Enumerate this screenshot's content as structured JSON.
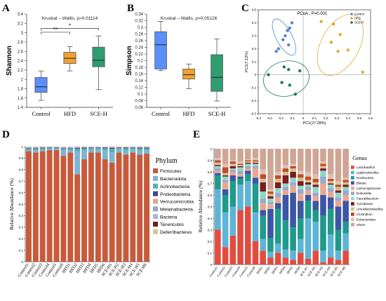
{
  "colors": {
    "control": "#5b8ff9",
    "hfd": "#f0a030",
    "sceh": "#2e9e6e",
    "pcoa_control": "#4a8ad6",
    "pcoa_hfd": "#e0a92f",
    "pcoa_sceh": "#1f7a55",
    "phylum": [
      "#c85a3c",
      "#7db6d4",
      "#51b3b1",
      "#3b4e8c",
      "#d6a98c",
      "#98a6c9",
      "#a9b8d8",
      "#7a1c1c",
      "#d6c49a"
    ],
    "genus": [
      "#e24c3f",
      "#5eb4d6",
      "#1f9a8b",
      "#3c55a5",
      "#e8a88f",
      "#9aa8cf",
      "#8ed8c6",
      "#7c1d1d",
      "#d4c08f",
      "#c14b2a",
      "#e0bfb3",
      "#cfa594"
    ]
  },
  "chart_data": [
    {
      "panel": "A",
      "type": "box",
      "title": "Kruskal – Wallis, p=0.01114",
      "ylabel": "Shannon",
      "categories": [
        "Control",
        "HFD",
        "SCE-H"
      ],
      "ylim": [
        1.4,
        3.4
      ],
      "ticks": [
        "1.4",
        "1.6",
        "1.8",
        "2",
        "2.2",
        "2.4",
        "2.6",
        "2.8",
        "3",
        "3.2",
        "3.4"
      ],
      "tick_values": [
        1.4,
        1.6,
        1.8,
        2,
        2.2,
        2.4,
        2.6,
        2.8,
        3,
        3.2,
        3.4
      ],
      "boxes": [
        {
          "min": 1.55,
          "q1": 1.72,
          "median": 1.84,
          "q3": 2.04,
          "max": 2.18
        },
        {
          "min": 2.18,
          "q1": 2.34,
          "median": 2.45,
          "q3": 2.58,
          "max": 2.7
        },
        {
          "min": 1.78,
          "q1": 2.27,
          "median": 2.41,
          "q3": 2.69,
          "max": 2.93
        }
      ],
      "significance": [
        {
          "from": 0,
          "to": 1,
          "label": "**",
          "y": 3.01
        },
        {
          "from": 0,
          "to": 2,
          "label": "*",
          "y": 3.09
        }
      ]
    },
    {
      "panel": "B",
      "type": "box",
      "title": "Kruskal – Wallis, p=0.05126",
      "ylabel": "Simpson",
      "categories": [
        "Control",
        "HFD",
        "SCE-H"
      ],
      "ylim": [
        0.06,
        0.34
      ],
      "ticks": [
        "0.06",
        "0.08",
        "0.1",
        "0.12",
        "0.14",
        "0.16",
        "0.18",
        "0.2",
        "0.22",
        "0.24",
        "0.26",
        "0.28",
        "0.3",
        "0.32",
        "0.34"
      ],
      "tick_values": [
        0.06,
        0.08,
        0.1,
        0.12,
        0.14,
        0.16,
        0.18,
        0.2,
        0.22,
        0.24,
        0.26,
        0.28,
        0.3,
        0.32,
        0.34
      ],
      "boxes": [
        {
          "min": 0.17,
          "q1": 0.175,
          "median": 0.248,
          "q3": 0.287,
          "max": 0.318
        },
        {
          "min": 0.116,
          "q1": 0.145,
          "median": 0.158,
          "q3": 0.175,
          "max": 0.19
        },
        {
          "min": 0.079,
          "q1": 0.108,
          "median": 0.15,
          "q3": 0.218,
          "max": 0.265
        }
      ]
    },
    {
      "panel": "C",
      "type": "scatter",
      "title": "PCoA , P=0.001",
      "xlabel": "PC1(27.28%)",
      "ylabel": "PC2(7.12%)",
      "xlim": [
        -0.4,
        0.6
      ],
      "ylim": [
        -0.3,
        0.5
      ],
      "xticks": [
        "-0.4",
        "-0.3",
        "-0.2",
        "-0.1",
        "0",
        "0.1",
        "0.2",
        "0.3",
        "0.4",
        "0.5",
        "0.6"
      ],
      "xtick_values": [
        -0.4,
        -0.3,
        -0.2,
        -0.1,
        0,
        0.1,
        0.2,
        0.3,
        0.4,
        0.5,
        0.6
      ],
      "yticks": [
        "-0.3",
        "-0.2",
        "-0.1",
        "0",
        "0.1",
        "0.2",
        "0.3",
        "0.4",
        "0.5"
      ],
      "ytick_values": [
        -0.3,
        -0.2,
        -0.1,
        0,
        0.1,
        0.2,
        0.3,
        0.4,
        0.5
      ],
      "legend": [
        "Control",
        "HFD",
        "SCE-H"
      ],
      "series": [
        {
          "name": "Control",
          "points": [
            [
              -0.1,
              0.4
            ],
            [
              -0.12,
              0.36
            ],
            [
              -0.14,
              0.34
            ],
            [
              -0.16,
              0.3
            ],
            [
              -0.18,
              0.27
            ],
            [
              -0.22,
              0.2
            ],
            [
              -0.24,
              0.18
            ],
            [
              -0.13,
              0.23
            ]
          ]
        },
        {
          "name": "HFD",
          "points": [
            [
              0.16,
              0.41
            ],
            [
              0.27,
              0.39
            ],
            [
              0.33,
              0.31
            ],
            [
              0.25,
              0.25
            ],
            [
              0.4,
              0.19
            ],
            [
              0.31,
              0.18
            ],
            [
              0.53,
              0.02
            ]
          ]
        },
        {
          "name": "SCE-H",
          "points": [
            [
              -0.31,
              0.0
            ],
            [
              -0.19,
              -0.06
            ],
            [
              -0.17,
              0.06
            ],
            [
              -0.12,
              -0.08
            ],
            [
              -0.03,
              0.03
            ],
            [
              -0.13,
              0.04
            ],
            [
              -0.07,
              -0.15
            ]
          ]
        }
      ]
    },
    {
      "panel": "D",
      "type": "stacked_bar",
      "ylabel": "Relative Abundance (%)",
      "legend_title": "Phylum",
      "ylim": [
        0,
        1
      ],
      "yticks": [
        "0",
        "0.1",
        "0.2",
        "0.3",
        "0.4",
        "0.5",
        "0.6",
        "0.7",
        "0.8",
        "0.9",
        "1"
      ],
      "ytick_values": [
        0,
        0.1,
        0.2,
        0.3,
        0.4,
        0.5,
        0.6,
        0.7,
        0.8,
        0.9,
        1
      ],
      "series_names": [
        "Firmicutes",
        "Bacteroidota",
        "Actinobacteria",
        "Proteobacteria",
        "Verrucomicrobia",
        "Melainabacteria",
        "Bacteria",
        "Tenericutes",
        "Deferribacteres"
      ],
      "categories": [
        "Control1",
        "Control2",
        "Control3",
        "Control4",
        "Control5",
        "Control6",
        "HFD1",
        "HFD2",
        "HFD3",
        "HFD4",
        "HFD5",
        "HFD6",
        "SCE-H1",
        "SCE-H2",
        "SCE-H3",
        "SCE-H4",
        "SCE-H5",
        "SCE-H6"
      ],
      "values": [
        [
          0.96,
          0.01,
          0.01,
          0.005,
          0.005,
          0.005,
          0.003,
          0.001,
          0.001
        ],
        [
          0.95,
          0.02,
          0.01,
          0.005,
          0.005,
          0.005,
          0.003,
          0.001,
          0.001
        ],
        [
          0.96,
          0.015,
          0.01,
          0.005,
          0.004,
          0.003,
          0.002,
          0.001,
          0.001
        ],
        [
          0.97,
          0.01,
          0.008,
          0.004,
          0.003,
          0.002,
          0.002,
          0.001,
          0.0
        ],
        [
          0.97,
          0.01,
          0.008,
          0.004,
          0.003,
          0.002,
          0.002,
          0.001,
          0.0
        ],
        [
          0.92,
          0.05,
          0.01,
          0.005,
          0.005,
          0.005,
          0.003,
          0.001,
          0.001
        ],
        [
          0.95,
          0.02,
          0.01,
          0.005,
          0.005,
          0.005,
          0.003,
          0.001,
          0.001
        ],
        [
          0.76,
          0.2,
          0.02,
          0.008,
          0.005,
          0.004,
          0.002,
          0.001,
          0.0
        ],
        [
          0.89,
          0.08,
          0.015,
          0.006,
          0.004,
          0.003,
          0.001,
          0.001,
          0.0
        ],
        [
          0.95,
          0.025,
          0.012,
          0.005,
          0.004,
          0.002,
          0.001,
          0.001,
          0.0
        ],
        [
          0.95,
          0.025,
          0.012,
          0.005,
          0.004,
          0.002,
          0.001,
          0.001,
          0.0
        ],
        [
          0.89,
          0.08,
          0.015,
          0.006,
          0.004,
          0.003,
          0.001,
          0.001,
          0.0
        ],
        [
          0.86,
          0.09,
          0.03,
          0.01,
          0.005,
          0.003,
          0.001,
          0.001,
          0.0
        ],
        [
          0.95,
          0.025,
          0.012,
          0.005,
          0.004,
          0.002,
          0.001,
          0.001,
          0.0
        ],
        [
          0.93,
          0.04,
          0.015,
          0.007,
          0.004,
          0.002,
          0.001,
          0.001,
          0.0
        ],
        [
          0.95,
          0.025,
          0.012,
          0.005,
          0.004,
          0.002,
          0.001,
          0.001,
          0.0
        ],
        [
          0.93,
          0.04,
          0.015,
          0.007,
          0.004,
          0.002,
          0.001,
          0.001,
          0.0
        ],
        [
          0.94,
          0.03,
          0.015,
          0.007,
          0.004,
          0.002,
          0.001,
          0.001,
          0.0
        ]
      ]
    },
    {
      "panel": "E",
      "type": "stacked_bar",
      "ylabel": "Relative Abundance (%)",
      "legend_title": "Genus",
      "ylim": [
        0,
        1
      ],
      "yticks": [
        "0",
        "0.1",
        "0.2",
        "0.3",
        "0.4",
        "0.5",
        "0.6",
        "0.7",
        "0.8",
        "0.9",
        "1"
      ],
      "ytick_values": [
        0,
        0.1,
        0.2,
        0.3,
        0.4,
        0.5,
        0.6,
        0.7,
        0.8,
        0.9,
        1
      ],
      "series_names": [
        "Lactobacillus",
        "Ligilactobacillus",
        "Romboutsia",
        "Blautia",
        "Lachnospiraceae",
        "Dubosiella",
        "Faecalibaculum",
        "Turicibacter",
        "Limosilactobacillus",
        "Clostridium",
        "Eubacteriales",
        "others"
      ],
      "categories": [
        "Control1",
        "Control2",
        "Control3",
        "Control4",
        "Control5",
        "Control6",
        "HFD1",
        "HFD2",
        "HFD3",
        "HFD4",
        "HFD5",
        "HFD6",
        "SCE-H1",
        "SCE-H2",
        "SCE-H3",
        "SCE-H4",
        "SCE-H5",
        "SCE-H6"
      ],
      "values": [
        [
          0.3,
          0.35,
          0.12,
          0.02,
          0.02,
          0.02,
          0.02,
          0.01,
          0.02,
          0.02,
          0.02,
          0.08
        ],
        [
          0.15,
          0.3,
          0.15,
          0.05,
          0.06,
          0.02,
          0.03,
          0.01,
          0.02,
          0.05,
          0.03,
          0.13
        ],
        [
          0.25,
          0.25,
          0.22,
          0.05,
          0.03,
          0.02,
          0.01,
          0.02,
          0.02,
          0.02,
          0.01,
          0.1
        ],
        [
          0.47,
          0.22,
          0.05,
          0.02,
          0.02,
          0.03,
          0.03,
          0.01,
          0.01,
          0.01,
          0.02,
          0.11
        ],
        [
          0.5,
          0.22,
          0.06,
          0.03,
          0.02,
          0.02,
          0.02,
          0.01,
          0.01,
          0.01,
          0.01,
          0.09
        ],
        [
          0.2,
          0.25,
          0.25,
          0.05,
          0.08,
          0.02,
          0.02,
          0.01,
          0.01,
          0.01,
          0.02,
          0.08
        ],
        [
          0.12,
          0.1,
          0.2,
          0.05,
          0.06,
          0.04,
          0.06,
          0.08,
          0.03,
          0.04,
          0.04,
          0.18
        ],
        [
          0.06,
          0.05,
          0.12,
          0.25,
          0.04,
          0.02,
          0.03,
          0.02,
          0.02,
          0.02,
          0.02,
          0.35
        ],
        [
          0.1,
          0.08,
          0.3,
          0.05,
          0.05,
          0.04,
          0.04,
          0.05,
          0.03,
          0.03,
          0.03,
          0.2
        ],
        [
          0.06,
          0.07,
          0.25,
          0.22,
          0.04,
          0.03,
          0.03,
          0.07,
          0.03,
          0.03,
          0.03,
          0.14
        ],
        [
          0.04,
          0.08,
          0.2,
          0.3,
          0.06,
          0.03,
          0.04,
          0.05,
          0.03,
          0.02,
          0.02,
          0.13
        ],
        [
          0.1,
          0.12,
          0.18,
          0.15,
          0.06,
          0.04,
          0.03,
          0.04,
          0.03,
          0.03,
          0.03,
          0.19
        ],
        [
          0.05,
          0.35,
          0.15,
          0.05,
          0.04,
          0.03,
          0.02,
          0.02,
          0.02,
          0.03,
          0.04,
          0.2
        ],
        [
          0.12,
          0.25,
          0.1,
          0.08,
          0.04,
          0.03,
          0.05,
          0.02,
          0.02,
          0.03,
          0.04,
          0.22
        ],
        [
          0.02,
          0.1,
          0.3,
          0.18,
          0.1,
          0.06,
          0.05,
          0.02,
          0.02,
          0.02,
          0.02,
          0.11
        ],
        [
          0.06,
          0.2,
          0.22,
          0.1,
          0.05,
          0.03,
          0.03,
          0.01,
          0.02,
          0.02,
          0.04,
          0.22
        ],
        [
          0.04,
          0.08,
          0.18,
          0.2,
          0.05,
          0.03,
          0.04,
          0.02,
          0.03,
          0.02,
          0.03,
          0.28
        ],
        [
          0.12,
          0.15,
          0.1,
          0.18,
          0.05,
          0.04,
          0.03,
          0.02,
          0.02,
          0.02,
          0.02,
          0.25
        ]
      ]
    }
  ]
}
